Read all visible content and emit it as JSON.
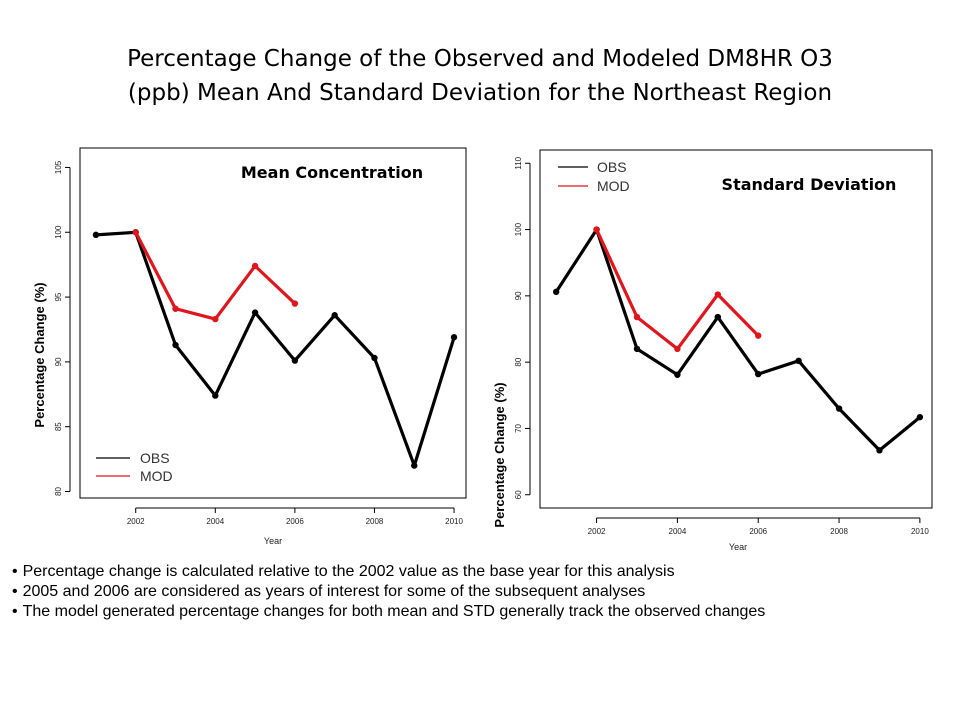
{
  "title": {
    "line1": "Percentage Change of the Observed and Modeled DM8HR O3",
    "line2": "(ppb) Mean And Standard Deviation for the Northeast Region"
  },
  "chart_data": [
    {
      "type": "line",
      "title": "Mean Concentration",
      "xlabel": "Year",
      "ylabel": "Percentage Change (%)",
      "xlim": [
        2000.6,
        2010.3
      ],
      "ylim": [
        79.5,
        106.5
      ],
      "xticks": [
        2002,
        2004,
        2006,
        2008,
        2010
      ],
      "yticks": [
        80,
        85,
        90,
        95,
        100,
        105
      ],
      "legend": "bottom-left",
      "series": [
        {
          "name": "OBS",
          "color": "#000000",
          "x": [
            2001,
            2002,
            2003,
            2004,
            2005,
            2006,
            2007,
            2008,
            2009,
            2010
          ],
          "y": [
            99.8,
            100,
            91.3,
            87.4,
            93.8,
            90.1,
            93.6,
            90.3,
            82.0,
            91.9
          ]
        },
        {
          "name": "MOD",
          "color": "#e0161d",
          "x": [
            2002,
            2003,
            2004,
            2005,
            2006
          ],
          "y": [
            100,
            94.1,
            93.3,
            97.4,
            94.5
          ]
        }
      ]
    },
    {
      "type": "line",
      "title": "Standard Deviation",
      "xlabel": "Year",
      "ylabel": "Percentage Change (%)",
      "xlim": [
        2000.6,
        2010.3
      ],
      "ylim": [
        58,
        112
      ],
      "xticks": [
        2002,
        2004,
        2006,
        2008,
        2010
      ],
      "yticks": [
        60,
        70,
        80,
        90,
        100,
        110
      ],
      "legend": "top-left",
      "series": [
        {
          "name": "OBS",
          "color": "#000000",
          "x": [
            2001,
            2002,
            2003,
            2004,
            2005,
            2006,
            2007,
            2008,
            2009,
            2010
          ],
          "y": [
            90.6,
            100,
            82.0,
            78.1,
            86.8,
            78.2,
            80.2,
            73.0,
            66.7,
            71.7
          ]
        },
        {
          "name": "MOD",
          "color": "#e0161d",
          "x": [
            2002,
            2003,
            2004,
            2005,
            2006
          ],
          "y": [
            100,
            86.8,
            82.0,
            90.2,
            84.0
          ]
        }
      ]
    }
  ],
  "notes": [
    "Percentage change is calculated relative to the 2002 value as the base year for this analysis",
    "2005 and 2006 are considered as years of interest for some of the subsequent analyses",
    "The model generated percentage changes for both mean and STD generally track the observed changes"
  ]
}
